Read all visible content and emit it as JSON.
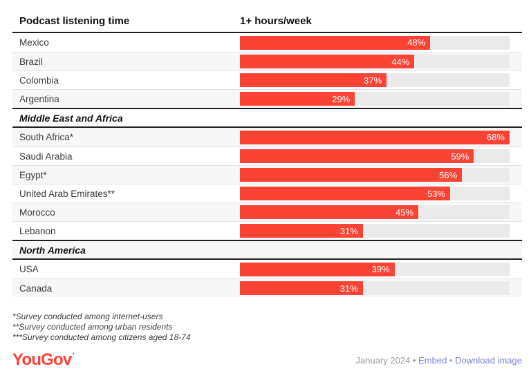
{
  "header": {
    "title": "Podcast listening time",
    "metric": "1+ hours/week"
  },
  "chart_data": {
    "type": "bar",
    "title": "Podcast listening time",
    "metric_label": "1+ hours/week",
    "unit": "%",
    "scale_max": 68,
    "orientation": "horizontal",
    "sections": [
      {
        "label": "",
        "rows": [
          {
            "country": "Mexico",
            "value": 48,
            "label": "48%"
          },
          {
            "country": "Brazil",
            "value": 44,
            "label": "44%"
          },
          {
            "country": "Colombia",
            "value": 37,
            "label": "37%"
          },
          {
            "country": "Argentina",
            "value": 29,
            "label": "29%"
          }
        ]
      },
      {
        "label": "Middle East and Africa",
        "rows": [
          {
            "country": "South Africa*",
            "value": 68,
            "label": "68%"
          },
          {
            "country": "Saudi Arabia",
            "value": 59,
            "label": "59%"
          },
          {
            "country": "Egypt*",
            "value": 56,
            "label": "56%"
          },
          {
            "country": "United Arab Emirates**",
            "value": 53,
            "label": "53%"
          },
          {
            "country": "Morocco",
            "value": 45,
            "label": "45%"
          },
          {
            "country": "Lebanon",
            "value": 31,
            "label": "31%"
          }
        ]
      },
      {
        "label": "North America",
        "rows": [
          {
            "country": "USA",
            "value": 39,
            "label": "39%"
          },
          {
            "country": "Canada",
            "value": 31,
            "label": "31%"
          }
        ]
      }
    ]
  },
  "footnotes": [
    "*Survey conducted among internet-users",
    "**Survey conducted among urban residents",
    "***Survey conducted among citizens aged 18-74"
  ],
  "footer": {
    "brand": "YouGov",
    "trademark": "’",
    "date": "January 2024",
    "separator": "•",
    "embed_label": "Embed",
    "download_label": "Download image"
  },
  "colors": {
    "bar": "#fb4333",
    "bar_label": "#ffffff",
    "track": "#eaeaea",
    "stripe": "#f7f7f7",
    "rule_dark": "#1f1f1f",
    "rule_light": "#e4e4e4",
    "link": "#7b7fe0",
    "muted_text": "#9a9a9a",
    "brand_red": "#fb4333"
  }
}
